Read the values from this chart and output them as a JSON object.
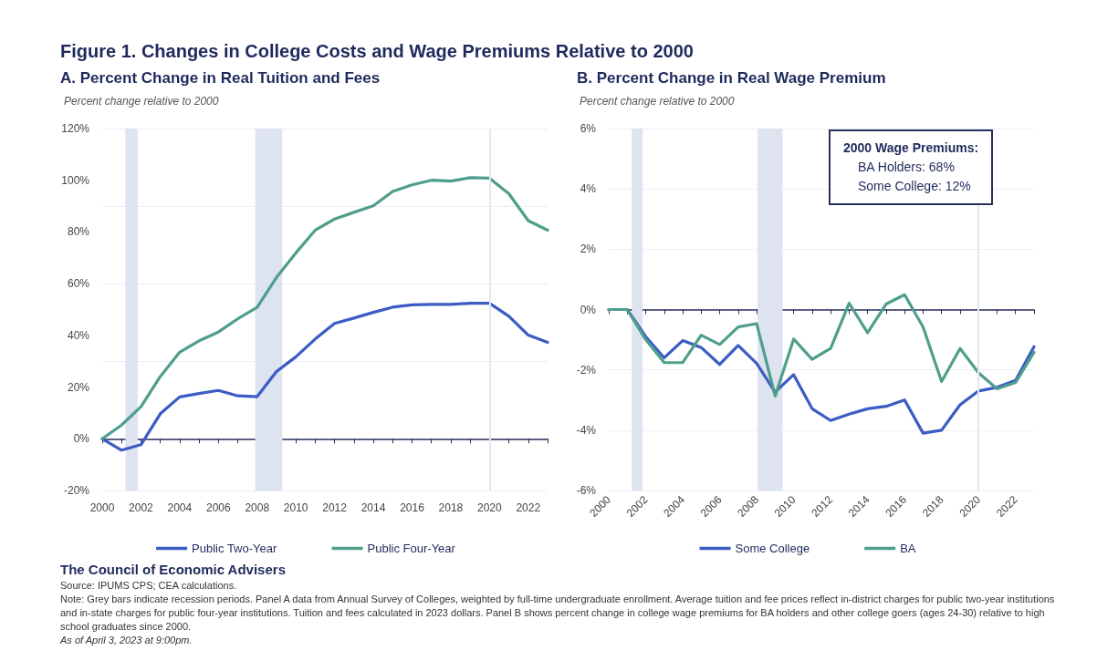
{
  "chart_data": [
    {
      "type": "line",
      "title": "Figure 1. Changes in College Costs and Wage Premiums Relative to 2000",
      "subtitle": "A. Percent Change in Real Tuition and Fees",
      "ylabel": "Percent change relative to 2000",
      "x": [
        2000,
        2001,
        2002,
        2003,
        2004,
        2005,
        2006,
        2007,
        2008,
        2009,
        2010,
        2011,
        2012,
        2013,
        2014,
        2015,
        2016,
        2017,
        2018,
        2019,
        2020,
        2021,
        2022,
        2023
      ],
      "series": [
        {
          "name": "Public Two-Year",
          "color": "#3b5cc4",
          "values": [
            0,
            -4.4,
            -2.3,
            9.7,
            16.2,
            17.5,
            18.7,
            16.6,
            16.3,
            26,
            31.7,
            38.6,
            44.6,
            46.7,
            48.9,
            50.9,
            51.8,
            52,
            52,
            52.4,
            52.4,
            47.4,
            40.1,
            37.3
          ]
        },
        {
          "name": "Public Four-Year",
          "color": "#4f9e8c",
          "values": [
            0,
            5.3,
            12.4,
            24.1,
            33.5,
            37.9,
            41.3,
            46.4,
            50.8,
            62.4,
            71.9,
            80.7,
            85,
            87.6,
            90.1,
            95.7,
            98.2,
            100,
            99.7,
            101,
            100.8,
            94.8,
            84.4,
            80.7
          ]
        }
      ],
      "xlim": [
        2000,
        2023
      ],
      "xticks": [
        2000,
        {
          "value": 2001,
          "label": null
        },
        2002,
        {
          "value": 2003,
          "label": null
        },
        2004,
        {
          "value": 2005,
          "label": null
        },
        2006,
        {
          "value": 2007,
          "label": null
        },
        2008,
        {
          "value": 2009,
          "label": null
        },
        2010,
        {
          "value": 2011,
          "label": null
        },
        2012,
        {
          "value": 2013,
          "label": null
        },
        2014,
        {
          "value": 2015,
          "label": null
        },
        2016,
        {
          "value": 2017,
          "label": null
        },
        2018,
        {
          "value": 2019,
          "label": null
        },
        2020,
        {
          "value": 2021,
          "label": null
        },
        2022,
        {
          "value": 2023,
          "label": null
        }
      ],
      "ylim": [
        -20,
        120
      ],
      "yticks": [
        {
          "value": -20,
          "label": "-20%"
        },
        {
          "value": 0,
          "label": "0%"
        },
        {
          "value": 20,
          "label": "20%"
        },
        {
          "value": 40,
          "label": "40%"
        },
        {
          "value": 60,
          "label": "60%"
        },
        {
          "value": 80,
          "label": "80%"
        },
        {
          "value": 100,
          "label": "100%"
        },
        {
          "value": 120,
          "label": "120%"
        }
      ],
      "bands": [
        {
          "axis": "x",
          "from": 2001.2,
          "to": 2001.83,
          "color": "#dde3ef"
        },
        {
          "axis": "x",
          "from": 2007.9,
          "to": 2009.3,
          "color": "#dde3ef"
        }
      ],
      "ref_lines": [
        {
          "axis": "x",
          "value": 2020,
          "color": "#e3e7f0"
        }
      ],
      "grid": "y",
      "legend": "bottom",
      "annotations": [
        "The Council of Economic Advisers",
        "Source: IPUMS CPS; CEA calculations.",
        "Note: Grey bars indicate recession periods. Panel A data from Annual Survey of Colleges, weighted by full-time undergraduate enrollment. Average tuition and fee prices reflect in-district charges for public two-year institutions and in-state charges for public four-year institutions. Tuition and fees calculated in 2023 dollars. Panel B shows percent change in college wage premiums for BA holders and other college goers (ages 24-30) relative to high school graduates since 2000.",
        "As of April 3, 2023 at 9:00pm."
      ]
    },
    {
      "type": "line",
      "title": "B. Percent Change in Real Wage Premium",
      "ylabel": "Percent change relative to 2000",
      "x": [
        2000,
        2001,
        2002,
        2003,
        2004,
        2005,
        2006,
        2007,
        2008,
        2009,
        2010,
        2011,
        2012,
        2013,
        2014,
        2015,
        2016,
        2017,
        2018,
        2019,
        2020,
        2021,
        2022,
        2023
      ],
      "series": [
        {
          "name": "Some College",
          "color": "#3b5cc4",
          "values": [
            0,
            0,
            -0.9,
            -1.6,
            -1.03,
            -1.26,
            -1.82,
            -1.19,
            -1.79,
            -2.74,
            -2.16,
            -3.29,
            -3.68,
            -3.47,
            -3.29,
            -3.21,
            -3.0,
            -4.1,
            -4.0,
            -3.16,
            -2.7,
            -2.58,
            -2.35,
            -1.23
          ]
        },
        {
          "name": "BA",
          "color": "#4f9e8c",
          "values": [
            0,
            0,
            -1.0,
            -1.76,
            -1.76,
            -0.85,
            -1.16,
            -0.58,
            -0.47,
            -2.87,
            -0.98,
            -1.65,
            -1.29,
            0.21,
            -0.77,
            0.18,
            0.49,
            -0.58,
            -2.39,
            -1.29,
            -2.1,
            -2.63,
            -2.42,
            -1.42
          ]
        }
      ],
      "xlim": [
        2000,
        2023
      ],
      "xticks": [
        2000,
        {
          "value": 2001,
          "label": null
        },
        2002,
        {
          "value": 2003,
          "label": null
        },
        2004,
        {
          "value": 2005,
          "label": null
        },
        2006,
        {
          "value": 2007,
          "label": null
        },
        2008,
        {
          "value": 2009,
          "label": null
        },
        2010,
        {
          "value": 2011,
          "label": null
        },
        2012,
        {
          "value": 2013,
          "label": null
        },
        2014,
        {
          "value": 2015,
          "label": null
        },
        2016,
        {
          "value": 2017,
          "label": null
        },
        2018,
        {
          "value": 2019,
          "label": null
        },
        2020,
        {
          "value": 2021,
          "label": null
        },
        2022,
        {
          "value": 2023,
          "label": null
        }
      ],
      "ylim": [
        -6,
        6
      ],
      "yticks": [
        {
          "value": -6,
          "label": "-6%"
        },
        {
          "value": -4,
          "label": "-4%"
        },
        {
          "value": -2,
          "label": "-2%"
        },
        {
          "value": 0,
          "label": "0%"
        },
        {
          "value": 2,
          "label": "2%"
        },
        {
          "value": 4,
          "label": "4%"
        },
        {
          "value": 6,
          "label": "6%"
        }
      ],
      "bands": [
        {
          "axis": "x",
          "from": 2001.25,
          "to": 2001.83,
          "color": "#dde3ef"
        },
        {
          "axis": "x",
          "from": 2008.05,
          "to": 2009.4,
          "color": "#dde3ef"
        }
      ],
      "ref_lines": [
        {
          "axis": "x",
          "value": 2020,
          "color": "#e3e7f0"
        }
      ],
      "grid": "y",
      "legend": "bottom",
      "annotations": [
        "2000 Wage Premiums:",
        "BA Holders:  68%",
        "Some College:  12%"
      ]
    }
  ]
}
